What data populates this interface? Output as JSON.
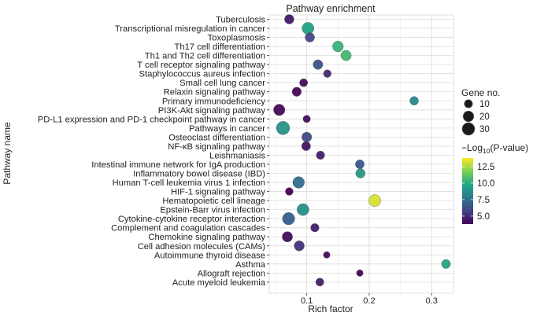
{
  "chart_data": {
    "type": "scatter",
    "title": "Pathway enrichment",
    "xlabel": "Rich factor",
    "ylabel": "Pathway name",
    "xlim": [
      0.04,
      0.335
    ],
    "xticks": [
      0.1,
      0.2,
      0.3
    ],
    "xtick_labels": [
      "0.1",
      "0.2",
      "0.3"
    ],
    "grid": true,
    "pathways": [
      {
        "name": "Tuberculosis",
        "x": 0.072,
        "gene": 14,
        "logp": 4.5
      },
      {
        "name": "Transcriptional misregulation in cancer",
        "x": 0.102,
        "gene": 26,
        "logp": 9.5
      },
      {
        "name": "Toxoplasmosis",
        "x": 0.105,
        "gene": 14,
        "logp": 6.0
      },
      {
        "name": "Th17 cell differentiation",
        "x": 0.15,
        "gene": 20,
        "logp": 10.3
      },
      {
        "name": "Th1 and Th2 cell differentiation",
        "x": 0.163,
        "gene": 18,
        "logp": 10.5
      },
      {
        "name": "T cell receptor signaling pathway",
        "x": 0.118,
        "gene": 15,
        "logp": 6.4
      },
      {
        "name": "Staphylococcus aureus infection",
        "x": 0.133,
        "gene": 8,
        "logp": 5.0
      },
      {
        "name": "Small cell lung cancer",
        "x": 0.095,
        "gene": 9,
        "logp": 4.1
      },
      {
        "name": "Relaxin signaling pathway",
        "x": 0.084,
        "gene": 13,
        "logp": 4.0
      },
      {
        "name": "Primary immunodeficiency",
        "x": 0.272,
        "gene": 11,
        "logp": 8.5
      },
      {
        "name": "PI3K-Akt signaling pathway",
        "x": 0.056,
        "gene": 23,
        "logp": 4.0
      },
      {
        "name": "PD-L1 expression and PD-1 checkpoint pathway in cancer",
        "x": 0.1,
        "gene": 7,
        "logp": 4.2
      },
      {
        "name": "Pathways in cancer",
        "x": 0.062,
        "gene": 34,
        "logp": 9.0
      },
      {
        "name": "Osteoclast differentiation",
        "x": 0.1,
        "gene": 16,
        "logp": 6.0
      },
      {
        "name": "NF-κB signaling pathway",
        "x": 0.099,
        "gene": 12,
        "logp": 4.3
      },
      {
        "name": "Leishmaniasis",
        "x": 0.122,
        "gene": 10,
        "logp": 4.6
      },
      {
        "name": "Intestinal immune network for IgA production",
        "x": 0.185,
        "gene": 12,
        "logp": 6.6
      },
      {
        "name": "Inflammatory bowel disease (IBD)",
        "x": 0.186,
        "gene": 14,
        "logp": 9.1
      },
      {
        "name": "Human T-cell leukemia virus 1 infection",
        "x": 0.087,
        "gene": 24,
        "logp": 7.4
      },
      {
        "name": "HIF-1 signaling pathway",
        "x": 0.072,
        "gene": 8,
        "logp": 3.8
      },
      {
        "name": "Hematopoietic cell lineage",
        "x": 0.209,
        "gene": 26,
        "logp": 13.2
      },
      {
        "name": "Epstein-Barr virus infection",
        "x": 0.094,
        "gene": 26,
        "logp": 8.8
      },
      {
        "name": "Cytokine-cytokine receptor interaction",
        "x": 0.071,
        "gene": 28,
        "logp": 6.8
      },
      {
        "name": "Complement and coagulation cascades",
        "x": 0.113,
        "gene": 10,
        "logp": 4.7
      },
      {
        "name": "Chemokine signaling pathway",
        "x": 0.069,
        "gene": 18,
        "logp": 4.2
      },
      {
        "name": "Cell adhesion molecules (CAMs)",
        "x": 0.088,
        "gene": 17,
        "logp": 5.2
      },
      {
        "name": "Autoimmune thyroid disease",
        "x": 0.132,
        "gene": 5,
        "logp": 4.0
      },
      {
        "name": "Asthma",
        "x": 0.323,
        "gene": 12,
        "logp": 9.6
      },
      {
        "name": "Allograft rejection",
        "x": 0.185,
        "gene": 5,
        "logp": 3.9
      },
      {
        "name": "Acute myeloid leukemia",
        "x": 0.121,
        "gene": 9,
        "logp": 4.6
      }
    ],
    "legend_size": {
      "title": "Gene no.",
      "values": [
        10,
        20,
        30
      ],
      "labels": [
        "10",
        "20",
        "30"
      ]
    },
    "legend_color": {
      "title_prefix": "−Log",
      "title_sub": "10",
      "title_suffix": "(P-value)",
      "ticks": [
        5.0,
        7.5,
        10.0,
        12.5
      ],
      "tick_labels": [
        "5.0",
        "7.5",
        "10.0",
        "12.5"
      ],
      "range": [
        3.8,
        13.8
      ],
      "colors": [
        "#440154",
        "#414487",
        "#2a788e",
        "#22a884",
        "#7ad151",
        "#fde725"
      ]
    }
  }
}
